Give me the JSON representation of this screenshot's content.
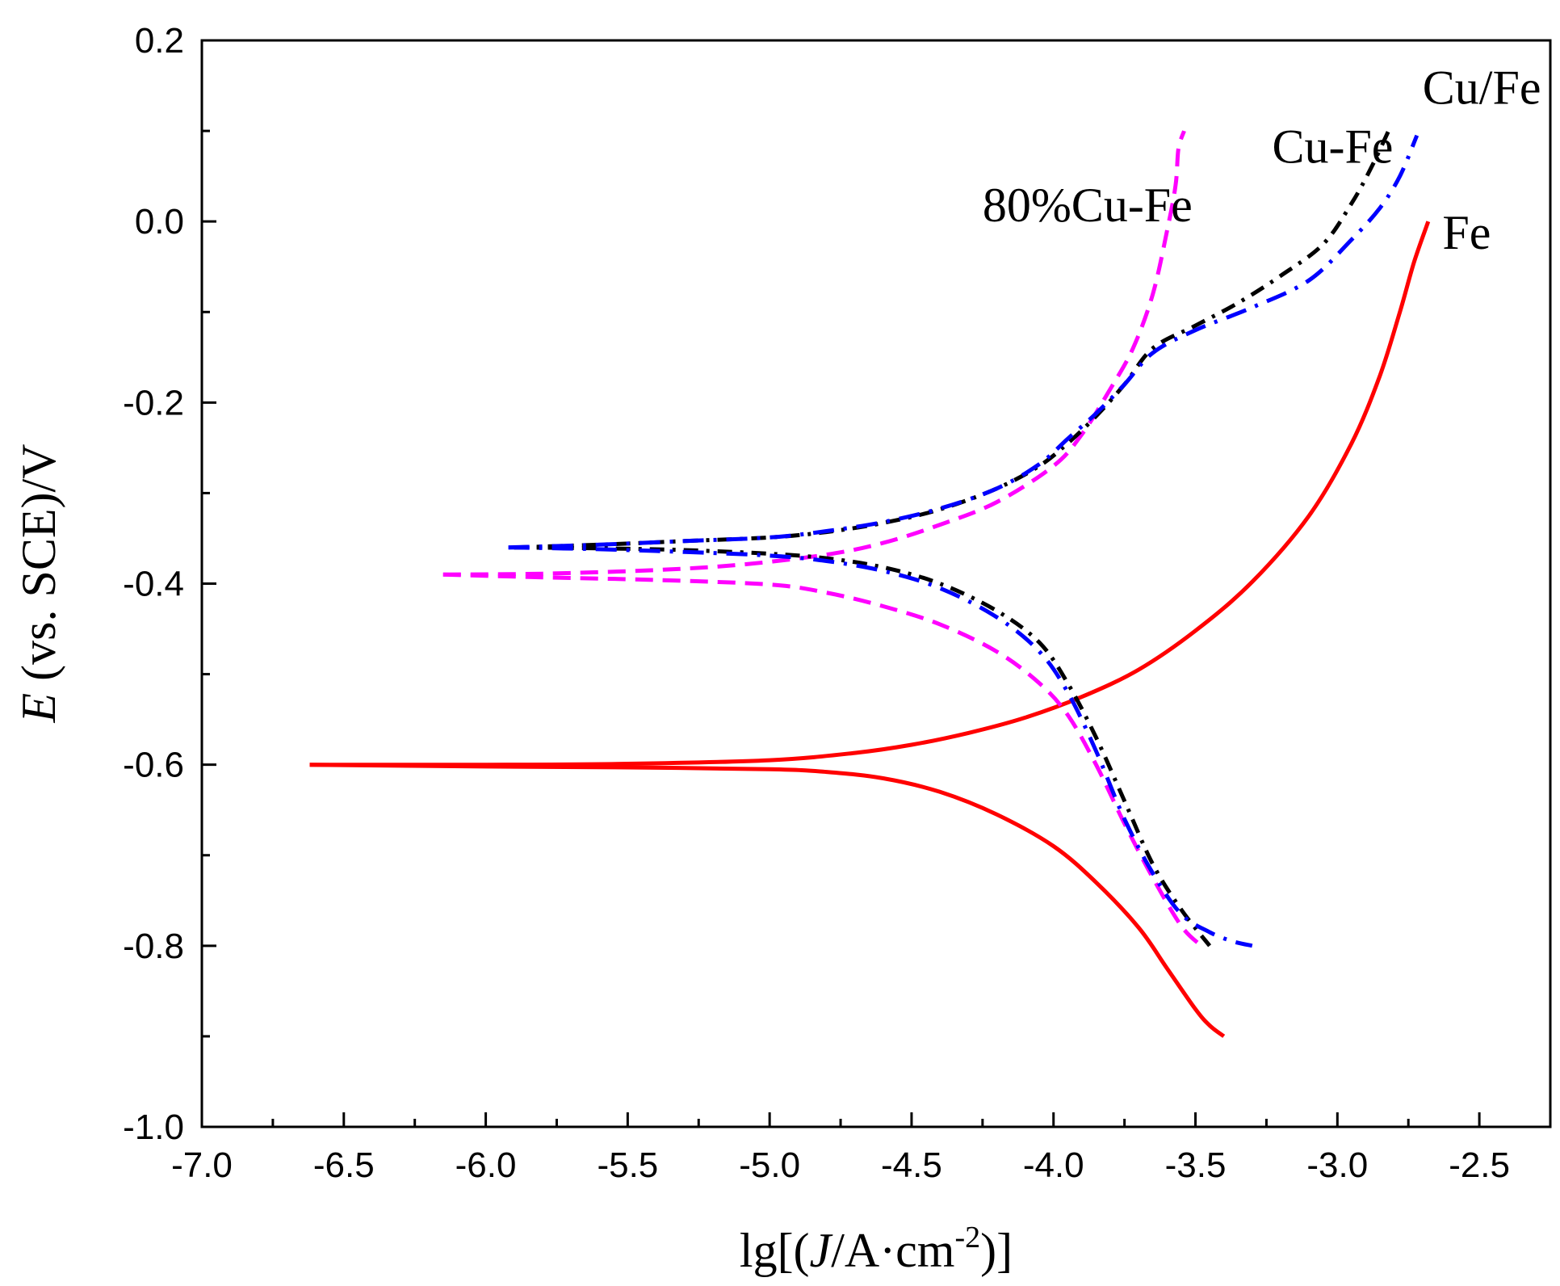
{
  "chart_data": {
    "type": "line",
    "title": "",
    "xlabel": "lg[(J/A·cm-2)]",
    "xlabel_parts": {
      "prefix": "lg[(",
      "var": "J",
      "unit": "/A·cm",
      "sup": "-2",
      "suffix": ")]"
    },
    "ylabel": "E (vs. SCE)/V",
    "ylabel_parts": {
      "var": "E",
      "rest": " (vs. SCE)/V"
    },
    "xlim": [
      -7.0,
      -2.25
    ],
    "ylim": [
      -1.0,
      0.2
    ],
    "xticks": [
      -7.0,
      -6.5,
      -6.0,
      -5.5,
      -5.0,
      -4.5,
      -4.0,
      -3.5,
      -3.0,
      -2.5
    ],
    "xtick_labels": [
      "-7.0",
      "-6.5",
      "-6.0",
      "-5.5",
      "-5.0",
      "-4.5",
      "-4.0",
      "-3.5",
      "-3.0",
      "-2.5"
    ],
    "yticks": [
      -1.0,
      -0.8,
      -0.6,
      -0.4,
      -0.2,
      0.0,
      0.2
    ],
    "ytick_labels": [
      "-1.0",
      "-0.8",
      "-0.6",
      "-0.4",
      "-0.2",
      "0.0",
      "0.2"
    ],
    "grid": false,
    "series": [
      {
        "name": "Fe",
        "color": "#ff0000",
        "dash": "solid",
        "label_pos": [
          -2.63,
          -0.03
        ],
        "anodic": [
          [
            -6.62,
            -0.6
          ],
          [
            -6.0,
            -0.6
          ],
          [
            -5.5,
            -0.599
          ],
          [
            -5.0,
            -0.595
          ],
          [
            -4.7,
            -0.587
          ],
          [
            -4.5,
            -0.578
          ],
          [
            -4.3,
            -0.565
          ],
          [
            -4.1,
            -0.548
          ],
          [
            -3.9,
            -0.525
          ],
          [
            -3.7,
            -0.495
          ],
          [
            -3.5,
            -0.452
          ],
          [
            -3.3,
            -0.398
          ],
          [
            -3.1,
            -0.325
          ],
          [
            -2.95,
            -0.245
          ],
          [
            -2.85,
            -0.17
          ],
          [
            -2.78,
            -0.1
          ],
          [
            -2.73,
            -0.045
          ],
          [
            -2.68,
            0.0
          ]
        ],
        "cathodic": [
          [
            -6.62,
            -0.6
          ],
          [
            -6.0,
            -0.602
          ],
          [
            -5.5,
            -0.603
          ],
          [
            -5.0,
            -0.605
          ],
          [
            -4.8,
            -0.608
          ],
          [
            -4.6,
            -0.615
          ],
          [
            -4.4,
            -0.63
          ],
          [
            -4.2,
            -0.655
          ],
          [
            -4.0,
            -0.69
          ],
          [
            -3.85,
            -0.73
          ],
          [
            -3.7,
            -0.78
          ],
          [
            -3.6,
            -0.825
          ],
          [
            -3.5,
            -0.87
          ],
          [
            -3.45,
            -0.888
          ],
          [
            -3.4,
            -0.9
          ]
        ]
      },
      {
        "name": "80%Cu-Fe",
        "color": "#ff00ff",
        "dash": "22 12",
        "label_pos": [
          -4.25,
          0.0
        ],
        "anodic": [
          [
            -6.15,
            -0.39
          ],
          [
            -5.8,
            -0.389
          ],
          [
            -5.4,
            -0.385
          ],
          [
            -5.1,
            -0.379
          ],
          [
            -4.8,
            -0.368
          ],
          [
            -4.6,
            -0.355
          ],
          [
            -4.4,
            -0.335
          ],
          [
            -4.2,
            -0.31
          ],
          [
            -4.0,
            -0.27
          ],
          [
            -3.9,
            -0.235
          ],
          [
            -3.8,
            -0.185
          ],
          [
            -3.72,
            -0.14
          ],
          [
            -3.65,
            -0.08
          ],
          [
            -3.6,
            -0.01
          ],
          [
            -3.57,
            0.04
          ],
          [
            -3.56,
            0.08
          ],
          [
            -3.54,
            0.1
          ]
        ],
        "cathodic": [
          [
            -6.15,
            -0.39
          ],
          [
            -5.8,
            -0.393
          ],
          [
            -5.4,
            -0.396
          ],
          [
            -5.0,
            -0.401
          ],
          [
            -4.8,
            -0.41
          ],
          [
            -4.6,
            -0.425
          ],
          [
            -4.4,
            -0.445
          ],
          [
            -4.2,
            -0.475
          ],
          [
            -4.05,
            -0.51
          ],
          [
            -3.95,
            -0.545
          ],
          [
            -3.85,
            -0.6
          ],
          [
            -3.75,
            -0.665
          ],
          [
            -3.65,
            -0.725
          ],
          [
            -3.55,
            -0.778
          ],
          [
            -3.48,
            -0.8
          ]
        ]
      },
      {
        "name": "Cu-Fe",
        "color": "#000000",
        "dash": "18 10 4 10",
        "label_pos": [
          -3.23,
          0.065
        ],
        "anodic": [
          [
            -5.9,
            -0.36
          ],
          [
            -5.6,
            -0.357
          ],
          [
            -5.3,
            -0.353
          ],
          [
            -5.0,
            -0.349
          ],
          [
            -4.8,
            -0.343
          ],
          [
            -4.6,
            -0.333
          ],
          [
            -4.4,
            -0.318
          ],
          [
            -4.2,
            -0.295
          ],
          [
            -4.05,
            -0.27
          ],
          [
            -3.95,
            -0.245
          ],
          [
            -3.85,
            -0.215
          ],
          [
            -3.75,
            -0.18
          ],
          [
            -3.65,
            -0.14
          ],
          [
            -3.5,
            -0.115
          ],
          [
            -3.35,
            -0.09
          ],
          [
            -3.2,
            -0.06
          ],
          [
            -3.05,
            -0.025
          ],
          [
            -2.95,
            0.02
          ],
          [
            -2.88,
            0.06
          ],
          [
            -2.82,
            0.1
          ]
        ],
        "cathodic": [
          [
            -5.9,
            -0.36
          ],
          [
            -5.6,
            -0.361
          ],
          [
            -5.3,
            -0.363
          ],
          [
            -5.0,
            -0.367
          ],
          [
            -4.8,
            -0.372
          ],
          [
            -4.6,
            -0.382
          ],
          [
            -4.4,
            -0.4
          ],
          [
            -4.2,
            -0.43
          ],
          [
            -4.05,
            -0.465
          ],
          [
            -3.95,
            -0.51
          ],
          [
            -3.85,
            -0.57
          ],
          [
            -3.75,
            -0.64
          ],
          [
            -3.65,
            -0.71
          ],
          [
            -3.55,
            -0.76
          ],
          [
            -3.45,
            -0.8
          ]
        ]
      },
      {
        "name": "Cu/Fe",
        "color": "#0000ff",
        "dash": "26 12 4 12",
        "label_pos": [
          -2.7,
          0.13
        ],
        "anodic": [
          [
            -5.92,
            -0.36
          ],
          [
            -5.6,
            -0.357
          ],
          [
            -5.3,
            -0.353
          ],
          [
            -5.0,
            -0.349
          ],
          [
            -4.8,
            -0.342
          ],
          [
            -4.6,
            -0.332
          ],
          [
            -4.4,
            -0.317
          ],
          [
            -4.2,
            -0.295
          ],
          [
            -4.05,
            -0.268
          ],
          [
            -3.95,
            -0.24
          ],
          [
            -3.85,
            -0.212
          ],
          [
            -3.75,
            -0.18
          ],
          [
            -3.65,
            -0.145
          ],
          [
            -3.5,
            -0.12
          ],
          [
            -3.3,
            -0.095
          ],
          [
            -3.1,
            -0.065
          ],
          [
            -2.95,
            -0.02
          ],
          [
            -2.85,
            0.015
          ],
          [
            -2.78,
            0.05
          ],
          [
            -2.72,
            0.095
          ]
        ],
        "cathodic": [
          [
            -5.92,
            -0.36
          ],
          [
            -5.6,
            -0.362
          ],
          [
            -5.3,
            -0.365
          ],
          [
            -5.0,
            -0.369
          ],
          [
            -4.8,
            -0.375
          ],
          [
            -4.6,
            -0.386
          ],
          [
            -4.4,
            -0.405
          ],
          [
            -4.2,
            -0.437
          ],
          [
            -4.05,
            -0.475
          ],
          [
            -3.95,
            -0.52
          ],
          [
            -3.85,
            -0.585
          ],
          [
            -3.75,
            -0.66
          ],
          [
            -3.65,
            -0.72
          ],
          [
            -3.55,
            -0.765
          ],
          [
            -3.45,
            -0.785
          ],
          [
            -3.37,
            -0.795
          ],
          [
            -3.3,
            -0.8
          ]
        ]
      }
    ]
  }
}
